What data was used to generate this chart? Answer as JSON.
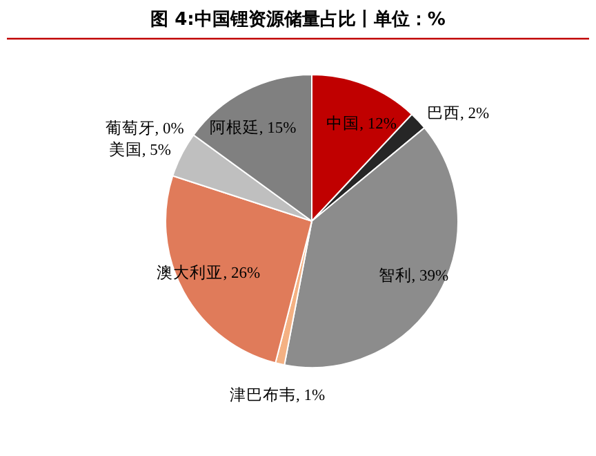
{
  "chart_data": {
    "type": "pie",
    "title": "图 4:中国锂资源储量占比丨单位：%",
    "categories": [
      "中国",
      "巴西",
      "智利",
      "津巴布韦",
      "澳大利亚",
      "美国",
      "葡萄牙",
      "阿根廷"
    ],
    "values": [
      12,
      2,
      39,
      1,
      26,
      5,
      0,
      15
    ],
    "value_labels": [
      ", 12%",
      ", 2%",
      ", 39%",
      ", 1%",
      ", 26%",
      ", 5%",
      ", 0%",
      ", 15%"
    ],
    "colors": [
      "#c00000",
      "#262626",
      "#8c8c8c",
      "#f4b183",
      "#e07b5a",
      "#bfbfbf",
      "#e8a0a0",
      "#808080"
    ]
  }
}
